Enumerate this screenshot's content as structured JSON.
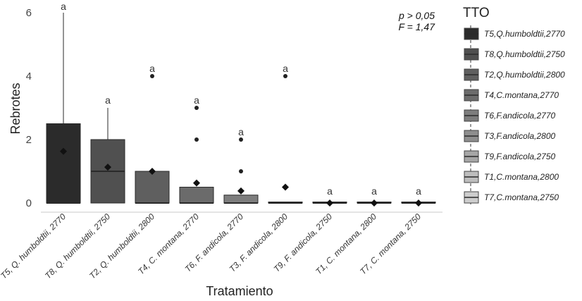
{
  "chart_data": {
    "type": "box",
    "xlabel": "Tratamiento",
    "ylabel": "Rebrotes",
    "ylim": [
      0,
      6
    ],
    "yticks": [
      "0",
      "2",
      "4",
      "6"
    ],
    "annotations": [
      "p > 0,05",
      "F = 1,47"
    ],
    "legend_title": "TTO",
    "legend_position": "right",
    "categories": [
      "T5, Q. humboldtii, 2770",
      "T8, Q. humboldtii, 2750",
      "T2, Q. humboldtii, 2800",
      "T4, C. montana, 2770",
      "T6, F. andicola, 2770",
      "T3, F. andicola, 2800",
      "T9, F. andicola, 2750",
      "T1, C. montana, 2800",
      "T7, C. montana, 2750"
    ],
    "legend_entries": [
      "T5,Q.humboldtii,2770",
      "T8,Q.humboldtii,2750",
      "T2,Q.humboldtii,2800",
      "T4,C.montana,2770",
      "T6,F.andicola,2770",
      "T3,F.andicola,2800",
      "T9,F.andicola,2750",
      "T1,C.montana,2800",
      "T7,C.montana,2750"
    ],
    "fill_colors": [
      "#2b2b2b",
      "#505050",
      "#5f5f5f",
      "#6b6b6b",
      "#7d7d7d",
      "#8e8e8e",
      "#a6a6a6",
      "#bdbdbd",
      "#cdcdcd"
    ],
    "boxes": [
      {
        "min": 0,
        "q1": 0,
        "median": 0,
        "q3": 2.5,
        "max": 6,
        "mean": 1.63,
        "outliers": [],
        "group": "a"
      },
      {
        "min": 0,
        "q1": 0,
        "median": 1,
        "q3": 2,
        "max": 3,
        "mean": 1.13,
        "outliers": [],
        "group": "a"
      },
      {
        "min": 0,
        "q1": 0,
        "median": 0,
        "q3": 1,
        "max": 1,
        "mean": 1.0,
        "outliers": [
          4
        ],
        "group": "a"
      },
      {
        "min": 0,
        "q1": 0,
        "median": 0,
        "q3": 0.5,
        "max": 0.5,
        "mean": 0.63,
        "outliers": [
          2,
          3
        ],
        "group": "a"
      },
      {
        "min": 0,
        "q1": 0,
        "median": 0,
        "q3": 0.25,
        "max": 0.25,
        "mean": 0.38,
        "outliers": [
          1,
          2
        ],
        "group": "a"
      },
      {
        "min": 0,
        "q1": 0,
        "median": 0,
        "q3": 0,
        "max": 0,
        "mean": 0.5,
        "outliers": [
          4
        ],
        "group": "a"
      },
      {
        "min": 0,
        "q1": 0,
        "median": 0,
        "q3": 0,
        "max": 0,
        "mean": 0,
        "outliers": [],
        "group": "a"
      },
      {
        "min": 0,
        "q1": 0,
        "median": 0,
        "q3": 0,
        "max": 0,
        "mean": 0,
        "outliers": [],
        "group": "a"
      },
      {
        "min": 0,
        "q1": 0,
        "median": 0,
        "q3": 0,
        "max": 0,
        "mean": 0,
        "outliers": [],
        "group": "a"
      }
    ]
  }
}
